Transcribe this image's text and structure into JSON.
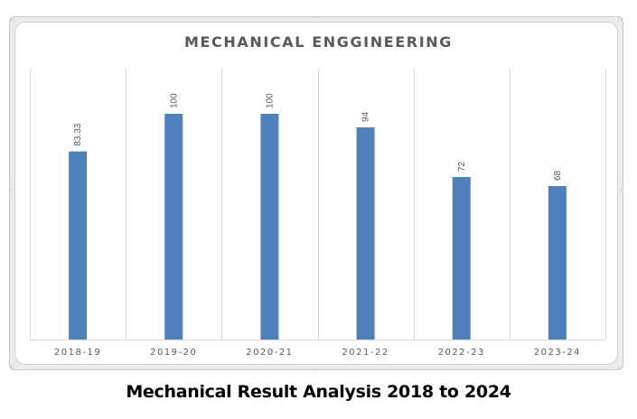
{
  "chart_data": {
    "type": "bar",
    "title": "MECHANICAL ENGGINEERING",
    "categories": [
      "2018-19",
      "2019-20",
      "2020-21",
      "2021-22",
      "2022-23",
      "2023-24"
    ],
    "values": [
      83.33,
      100,
      100,
      94,
      72,
      68
    ],
    "data_labels": [
      "83.33",
      "100",
      "100",
      "94",
      "72",
      "68"
    ],
    "xlabel": "",
    "ylabel": "",
    "ylim": [
      0,
      120
    ],
    "y_axis_visible": false,
    "grid": "vertical category separators",
    "legend": "none",
    "bar_color": "#4f81bd"
  },
  "caption": "Mechanical Result Analysis 2018 to 2024"
}
